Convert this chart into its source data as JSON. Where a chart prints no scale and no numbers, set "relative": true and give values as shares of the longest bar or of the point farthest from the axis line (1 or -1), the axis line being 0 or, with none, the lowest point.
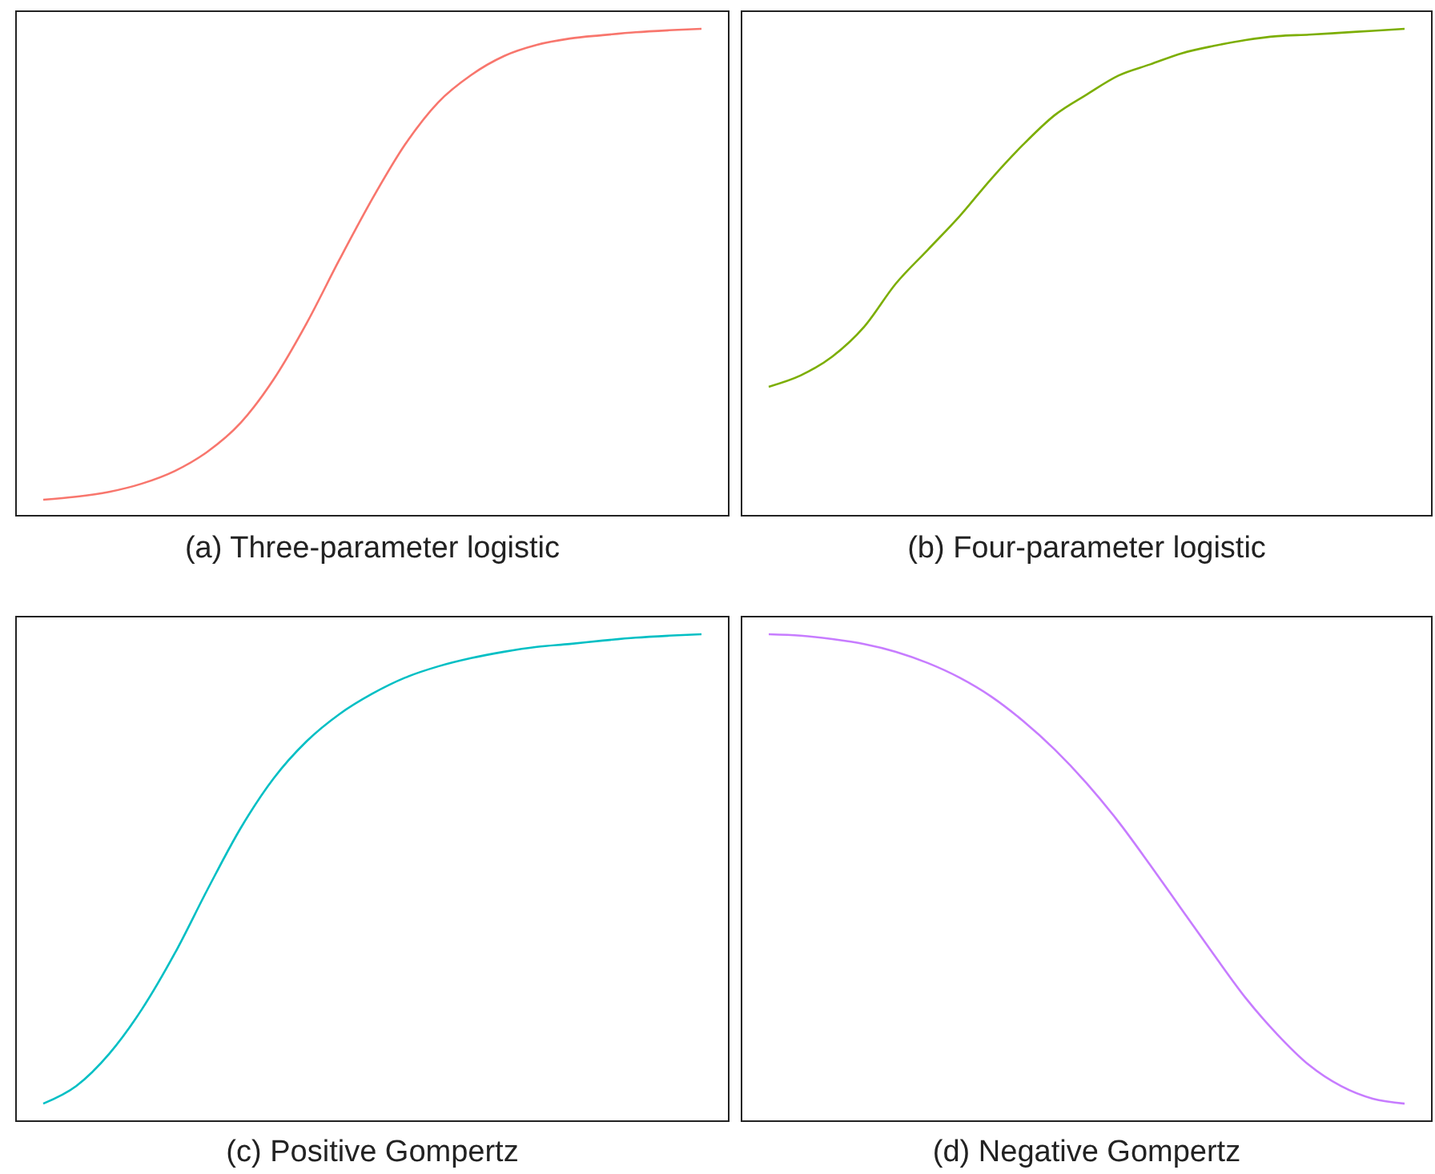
{
  "chart_data": [
    {
      "type": "line",
      "title": "(a) Three-parameter logistic",
      "relative": true,
      "color": "#f8766d",
      "categories": [
        null,
        null,
        null,
        null,
        null,
        null,
        null,
        null,
        null,
        null,
        null,
        null,
        null,
        null,
        null,
        null,
        null,
        null,
        null,
        null,
        null
      ],
      "values": [
        0.033,
        0.039,
        0.049,
        0.066,
        0.092,
        0.132,
        0.191,
        0.28,
        0.395,
        0.526,
        0.651,
        0.763,
        0.849,
        0.905,
        0.944,
        0.967,
        0.98,
        0.987,
        0.993,
        0.997,
        1
      ]
    },
    {
      "type": "line",
      "title": "(b) Four-parameter logistic",
      "relative": true,
      "color": "#7cae00",
      "categories": [
        null,
        null,
        null,
        null,
        null,
        null,
        null,
        null,
        null,
        null,
        null,
        null,
        null,
        null,
        null,
        null,
        null,
        null,
        null,
        null,
        null
      ],
      "values": [
        0.265,
        0.288,
        0.327,
        0.388,
        0.477,
        0.546,
        0.615,
        0.692,
        0.762,
        0.823,
        0.865,
        0.904,
        0.927,
        0.95,
        0.965,
        0.977,
        0.985,
        0.988,
        0.992,
        0.996,
        1
      ]
    },
    {
      "type": "line",
      "title": "(c) Positive Gompertz",
      "relative": true,
      "color": "#00bfc4",
      "categories": [
        null,
        null,
        null,
        null,
        null,
        null,
        null,
        null,
        null,
        null,
        null,
        null,
        null,
        null,
        null,
        null,
        null,
        null,
        null,
        null,
        null
      ],
      "values": [
        0.036,
        0.072,
        0.138,
        0.23,
        0.345,
        0.477,
        0.602,
        0.704,
        0.78,
        0.836,
        0.878,
        0.911,
        0.934,
        0.951,
        0.964,
        0.974,
        0.98,
        0.987,
        0.993,
        0.997,
        1
      ]
    },
    {
      "type": "line",
      "title": "(d) Negative Gompertz",
      "relative": true,
      "color": "#c77cff",
      "categories": [
        null,
        null,
        null,
        null,
        null,
        null,
        null,
        null,
        null,
        null,
        null,
        null,
        null,
        null,
        null,
        null,
        null,
        null,
        null,
        null,
        null
      ],
      "values": [
        1,
        0.997,
        0.99,
        0.98,
        0.964,
        0.941,
        0.911,
        0.872,
        0.822,
        0.763,
        0.694,
        0.615,
        0.526,
        0.434,
        0.342,
        0.253,
        0.178,
        0.115,
        0.072,
        0.046,
        0.036
      ]
    }
  ]
}
